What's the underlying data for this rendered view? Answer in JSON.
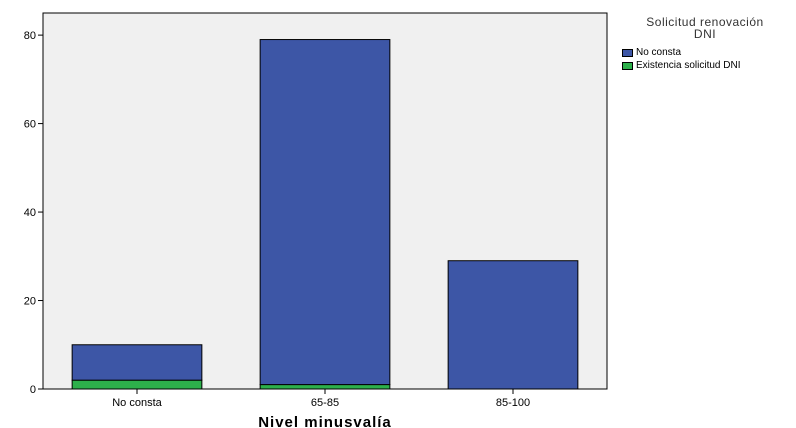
{
  "chart_data": {
    "type": "bar",
    "stacked": true,
    "categories": [
      "No consta",
      "65-85",
      "85-100"
    ],
    "series": [
      {
        "name": "Existencia solicitud DNI",
        "values": [
          2,
          1,
          0
        ],
        "color": "#2db04b"
      },
      {
        "name": "No consta",
        "values": [
          8,
          78,
          29
        ],
        "color": "#3d56a6"
      }
    ],
    "xlabel": "Nivel minusvalía",
    "ylabel": "",
    "ylim": [
      0,
      85
    ],
    "yticks": [
      0,
      20,
      40,
      60,
      80
    ],
    "grid": false,
    "plot_background": "#f0f0f0",
    "legend": {
      "title_lines": [
        "Solicitud renovación",
        "DNI"
      ],
      "placement": "top-right",
      "entries": [
        {
          "label": "No consta",
          "color": "#3d56a6"
        },
        {
          "label": "Existencia solicitud DNI",
          "color": "#2db04b"
        }
      ]
    }
  }
}
